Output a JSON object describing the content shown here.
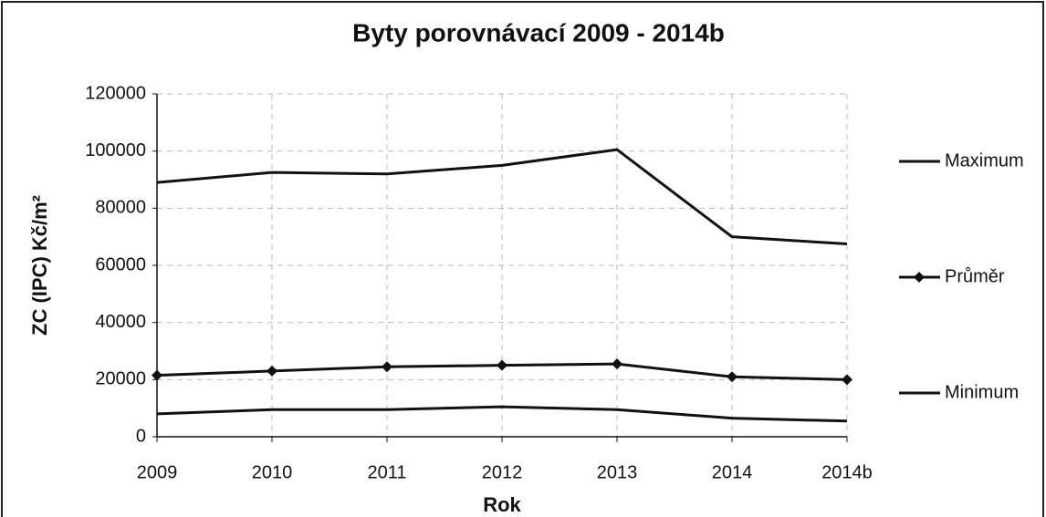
{
  "chart_data": {
    "type": "line",
    "title": "Byty porovnávací 2009 - 2014b",
    "x_label": "Rok",
    "y_label": "ZC (IPC) Kč/m²",
    "categories": [
      "2009",
      "2010",
      "2011",
      "2012",
      "2013",
      "2014",
      "2014b"
    ],
    "series": [
      {
        "name": "Maximum",
        "color": "#111111",
        "marker": null,
        "values": [
          89000,
          92500,
          92000,
          95000,
          100500,
          70000,
          67500
        ]
      },
      {
        "name": "Průměr",
        "color": "#111111",
        "marker": "diamond",
        "values": [
          21500,
          23000,
          24500,
          25000,
          25500,
          21000,
          20000
        ]
      },
      {
        "name": "Minimum",
        "color": "#111111",
        "marker": null,
        "values": [
          8000,
          9500,
          9500,
          10500,
          9500,
          6500,
          5500
        ]
      }
    ],
    "ylim": [
      0,
      120000
    ],
    "yticks": [
      0,
      20000,
      40000,
      60000,
      80000,
      100000,
      120000
    ],
    "grid": true,
    "legend": "right"
  }
}
